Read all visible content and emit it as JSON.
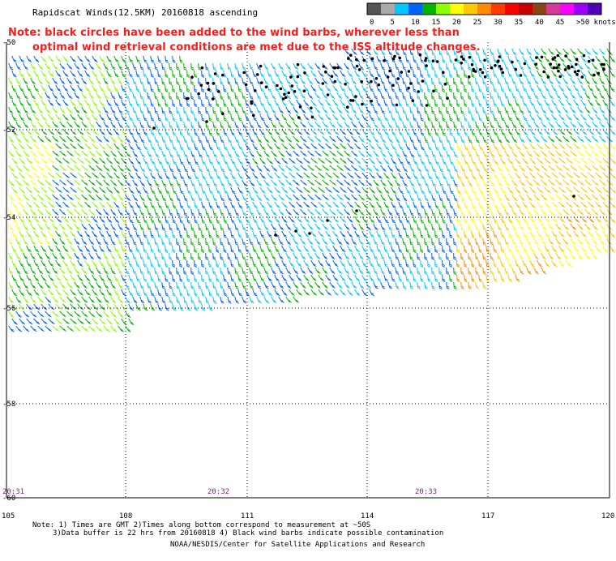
{
  "title": "Rapidscat Winds(12.5KM) 20160818 ascending",
  "note": {
    "line1": "Note: black circles have been added to the wind barbs, wherever less than",
    "line2": "optimal wind retrieval conditions are met due to the ISS altitude changes."
  },
  "legend": {
    "labels": [
      "0",
      "5",
      "10",
      "15",
      "20",
      "25",
      "30",
      "35",
      "40",
      "45",
      ">50 knots"
    ],
    "colors": [
      "#555555",
      "#aaaaaa",
      "#00c8ff",
      "#0064ff",
      "#00b400",
      "#8cff00",
      "#ffff00",
      "#ffc800",
      "#ff8c00",
      "#ff3c00",
      "#ff0000",
      "#c80000",
      "#8b4513",
      "#d23c96",
      "#ff00ff",
      "#9b00ff",
      "#5000b4"
    ]
  },
  "axes": {
    "lon_labels": [
      "105",
      "108",
      "111",
      "114",
      "117",
      "120"
    ],
    "lat_labels": [
      "-50",
      "-52",
      "-54",
      "-56",
      "-58",
      "-60"
    ],
    "time_labels": [
      "20:31",
      "20:32",
      "20:33"
    ]
  },
  "footer": {
    "line1": "Note: 1) Times are GMT 2)Times along bottom correspond to measurement at ~50S",
    "line2": "3)Data buffer is 22 hrs from 20160818 4) Black wind barbs indicate possible contamination",
    "line3": "NOAA/NESDIS/Center for Satellite Applications and Research"
  }
}
